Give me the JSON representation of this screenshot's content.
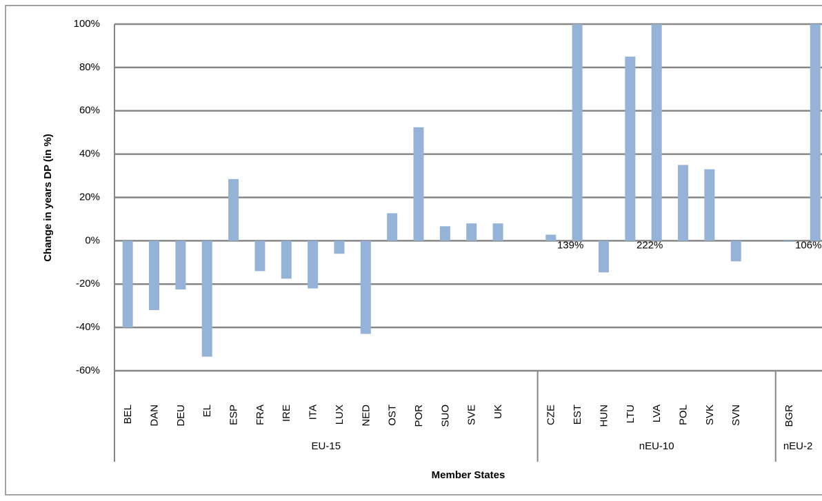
{
  "chart_data": {
    "type": "bar",
    "x_label": "Member States",
    "y_label": "Change in years DP (in %)",
    "categories": [
      "BEL",
      "DAN",
      "DEU",
      "EL",
      "ESP",
      "FRA",
      "IRE",
      "ITA",
      "LUX",
      "NED",
      "OST",
      "POR",
      "SUO",
      "SVE",
      "UK",
      null,
      "CZE",
      "EST",
      "HUN",
      "LTU",
      "LVA",
      "POL",
      "SVK",
      "SVN",
      null,
      "BGR",
      null
    ],
    "groups": [
      "EU-15",
      "EU-15",
      "EU-15",
      "EU-15",
      "EU-15",
      "EU-15",
      "EU-15",
      "EU-15",
      "EU-15",
      "EU-15",
      "EU-15",
      "EU-15",
      "EU-15",
      "EU-15",
      "EU-15",
      "EU-15",
      "nEU-10",
      "nEU-10",
      "nEU-10",
      "nEU-10",
      "nEU-10",
      "nEU-10",
      "nEU-10",
      "nEU-10",
      "nEU-10",
      "nEU-2",
      "nEU-2"
    ],
    "values": [
      -40,
      -32,
      -22.5,
      -53.5,
      28.5,
      -14,
      -17.5,
      -22,
      -6,
      -43,
      12.7,
      52.4,
      6.7,
      8,
      8,
      null,
      2.8,
      139,
      -14.6,
      85,
      222,
      35,
      33,
      -9.5,
      null,
      -0.5,
      106
    ],
    "value_labels": [
      null,
      null,
      null,
      null,
      null,
      null,
      null,
      null,
      null,
      null,
      null,
      null,
      null,
      null,
      null,
      null,
      null,
      "139%",
      null,
      null,
      "222%",
      null,
      null,
      null,
      null,
      null,
      "106%"
    ],
    "color": "#95b3d7",
    "ylim": [
      -60,
      100
    ],
    "yticks": [
      {
        "value": -60,
        "label": "-60%"
      },
      {
        "value": -40,
        "label": "-40%"
      },
      {
        "value": -20,
        "label": "-20%"
      },
      {
        "value": 0,
        "label": "0%"
      },
      {
        "value": 20,
        "label": "20%"
      },
      {
        "value": 40,
        "label": "40%"
      },
      {
        "value": 60,
        "label": "60%"
      },
      {
        "value": 80,
        "label": "80%"
      },
      {
        "value": 100,
        "label": "100%"
      }
    ],
    "grid": true
  }
}
